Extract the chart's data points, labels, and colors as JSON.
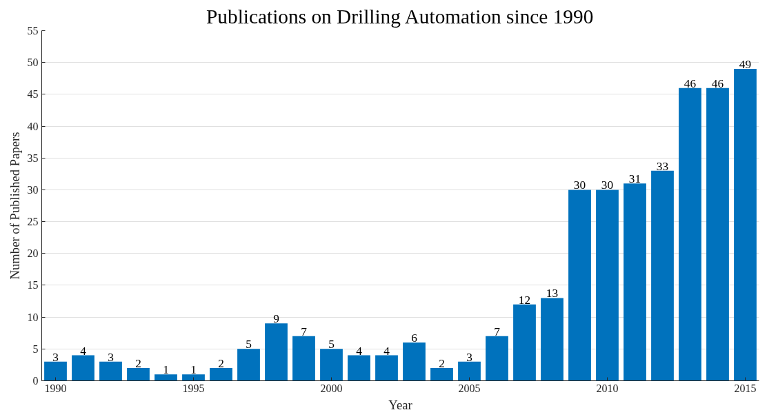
{
  "chart_data": {
    "type": "bar",
    "title": "Publications on Drilling Automation since 1990",
    "xlabel": "Year",
    "ylabel": "Number of Published Papers",
    "x": [
      1990,
      1991,
      1992,
      1993,
      1994,
      1995,
      1996,
      1997,
      1998,
      1999,
      2000,
      2001,
      2002,
      2003,
      2004,
      2005,
      2006,
      2007,
      2008,
      2009,
      2010,
      2011,
      2012,
      2013,
      2014,
      2015
    ],
    "values": [
      3,
      4,
      3,
      2,
      1,
      1,
      2,
      5,
      9,
      7,
      5,
      4,
      4,
      6,
      2,
      3,
      7,
      12,
      13,
      30,
      30,
      31,
      33,
      46,
      46,
      49
    ],
    "color": "#0072bd",
    "xlim": [
      1989.5,
      2015.5
    ],
    "xticks": [
      1990,
      1995,
      2000,
      2005,
      2010,
      2015
    ],
    "ylim": [
      0,
      55
    ],
    "yticks": [
      0,
      5,
      10,
      15,
      20,
      25,
      30,
      35,
      40,
      45,
      50,
      55
    ],
    "grid": "y",
    "data_labels": true
  }
}
